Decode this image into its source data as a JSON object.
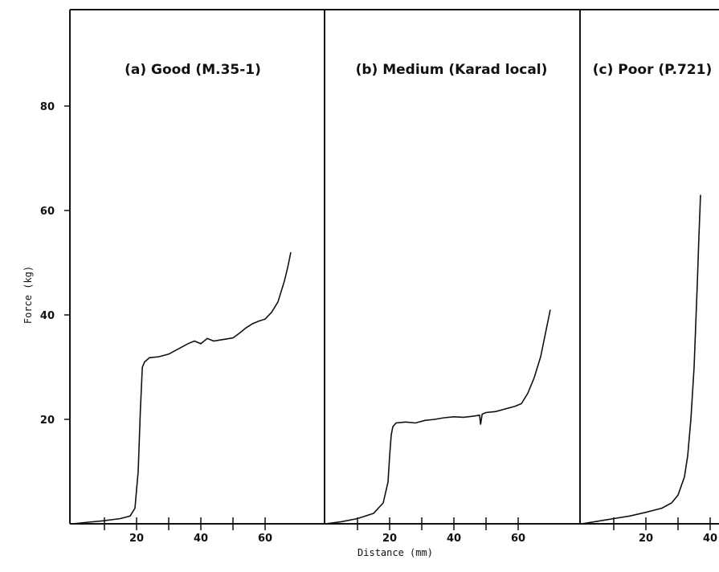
{
  "chart_data": {
    "type": "line",
    "ylabel": "Force (kg)",
    "xlabel": "Distance (mm)",
    "ylim": [
      0,
      100
    ],
    "yticks": [
      20,
      40,
      60,
      80
    ],
    "panels": [
      {
        "title": "(a) Good (M.35-1)",
        "xlim": [
          -8,
          84
        ],
        "xticks": [
          10,
          20,
          30,
          40,
          50,
          60
        ],
        "xtick_labels": [
          20,
          40,
          60
        ],
        "series": [
          {
            "x": [
              0,
              5,
              10,
              15,
              18,
              19.5,
              20.5,
              21.2,
              21.8,
              22.5,
              24,
              27,
              30,
              33,
              36,
              38,
              40,
              42,
              44,
              46,
              48,
              50,
              52,
              54,
              56,
              58,
              60,
              62,
              64,
              65,
              66,
              67,
              68
            ],
            "y": [
              0,
              0.3,
              0.6,
              1,
              1.5,
              3,
              10,
              22,
              30,
              31,
              31.8,
              32,
              32.5,
              33.5,
              34.5,
              35,
              34.5,
              35.5,
              35,
              35.2,
              35.4,
              35.6,
              36.5,
              37.5,
              38.3,
              38.8,
              39.2,
              40.5,
              42.5,
              44.5,
              46.5,
              49,
              52
            ]
          }
        ]
      },
      {
        "title": "(b) Medium (Karad local)",
        "xlim": [
          -8,
          84
        ],
        "xticks": [
          10,
          20,
          30,
          40,
          50,
          60
        ],
        "xtick_labels": [
          20,
          40,
          60
        ],
        "series": [
          {
            "x": [
              0,
              5,
              10,
              15,
              18,
              19.5,
              20,
              20.5,
              21,
              22,
              25,
              28,
              31,
              34,
              37,
              40,
              43,
              46,
              48,
              48.3,
              48.8,
              50,
              53,
              56,
              59,
              61,
              63,
              65,
              67,
              68,
              69,
              70
            ],
            "y": [
              0,
              0.4,
              1,
              2,
              4,
              8,
              13,
              17,
              18.6,
              19.3,
              19.5,
              19.3,
              19.8,
              20,
              20.3,
              20.5,
              20.4,
              20.6,
              20.8,
              19,
              21,
              21.3,
              21.5,
              22,
              22.5,
              23,
              25,
              28,
              32,
              35,
              38,
              41
            ]
          }
        ]
      },
      {
        "title": "(c) Poor (P.721)",
        "xlim": [
          -8,
          84
        ],
        "xticks": [
          10,
          20,
          30,
          40
        ],
        "xtick_labels": [
          20,
          40
        ],
        "series": [
          {
            "x": [
              0,
              5,
              10,
              15,
              20,
              25,
              28,
              30,
              32,
              33,
              34,
              35,
              35.5,
              36,
              36.5,
              37
            ],
            "y": [
              0,
              0.5,
              1,
              1.5,
              2.2,
              3,
              4,
              5.5,
              9,
              13,
              20,
              30,
              38,
              46,
              55,
              63
            ]
          }
        ]
      }
    ]
  }
}
